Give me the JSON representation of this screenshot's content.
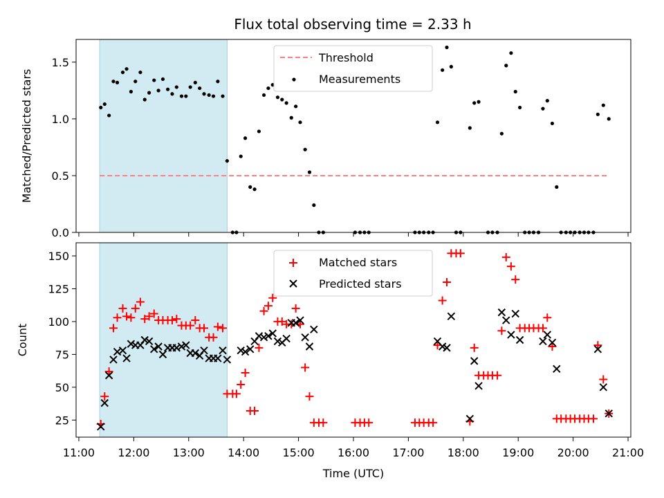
{
  "chart_data": [
    {
      "type": "scatter",
      "title": "Flux total observing time = 2.33 h",
      "ylabel": "Matched/Predicted stars",
      "xlabel": "",
      "ylim": [
        0,
        1.7
      ],
      "xlim": [
        10.95,
        21.05
      ],
      "yticks": [
        0.0,
        0.5,
        1.0,
        1.5
      ],
      "ytick_labels": [
        "0.0",
        "0.5",
        "1.0",
        "1.5"
      ],
      "shaded_span": [
        11.38,
        13.7
      ],
      "colors": {
        "threshold": "#ff7f7f",
        "measurements": "#000000",
        "shade": "#add8e6"
      },
      "legend": {
        "location": "top-center",
        "entries": [
          "Threshold",
          "Measurements"
        ]
      },
      "series": [
        {
          "name": "Threshold",
          "kind": "line",
          "y": 0.5,
          "x_range": [
            11.38,
            20.65
          ]
        },
        {
          "name": "Measurements",
          "kind": "scatter",
          "points": [
            [
              11.4,
              1.1
            ],
            [
              11.47,
              1.13
            ],
            [
              11.55,
              1.03
            ],
            [
              11.63,
              1.33
            ],
            [
              11.7,
              1.32
            ],
            [
              11.8,
              1.41
            ],
            [
              11.87,
              1.44
            ],
            [
              11.95,
              1.24
            ],
            [
              12.03,
              1.33
            ],
            [
              12.12,
              1.41
            ],
            [
              12.2,
              1.17
            ],
            [
              12.28,
              1.23
            ],
            [
              12.37,
              1.34
            ],
            [
              12.45,
              1.25
            ],
            [
              12.53,
              1.35
            ],
            [
              12.62,
              1.26
            ],
            [
              12.7,
              1.22
            ],
            [
              12.78,
              1.28
            ],
            [
              12.87,
              1.2
            ],
            [
              12.95,
              1.2
            ],
            [
              13.03,
              1.28
            ],
            [
              13.12,
              1.32
            ],
            [
              13.2,
              1.27
            ],
            [
              13.28,
              1.22
            ],
            [
              13.37,
              1.21
            ],
            [
              13.45,
              1.2
            ],
            [
              13.53,
              1.33
            ],
            [
              13.62,
              1.2
            ],
            [
              13.7,
              0.63
            ],
            [
              13.8,
              0
            ],
            [
              13.87,
              0
            ],
            [
              13.95,
              0.67
            ],
            [
              14.03,
              0.83
            ],
            [
              14.12,
              0.4
            ],
            [
              14.2,
              0.38
            ],
            [
              14.28,
              0.89
            ],
            [
              14.37,
              1.21
            ],
            [
              14.45,
              1.27
            ],
            [
              14.53,
              1.3
            ],
            [
              14.62,
              1.19
            ],
            [
              14.7,
              1.17
            ],
            [
              14.78,
              1.14
            ],
            [
              14.87,
              1.01
            ],
            [
              14.95,
              1.11
            ],
            [
              15.03,
              0.97
            ],
            [
              15.12,
              0.73
            ],
            [
              15.2,
              0.53
            ],
            [
              15.28,
              0.24
            ],
            [
              15.37,
              0
            ],
            [
              15.45,
              0
            ],
            [
              16.03,
              0
            ],
            [
              16.12,
              0
            ],
            [
              16.2,
              0
            ],
            [
              16.28,
              0
            ],
            [
              17.12,
              0
            ],
            [
              17.2,
              0
            ],
            [
              17.28,
              0
            ],
            [
              17.37,
              0
            ],
            [
              17.45,
              0
            ],
            [
              17.53,
              0.97
            ],
            [
              17.62,
              1.43
            ],
            [
              17.7,
              1.63
            ],
            [
              17.78,
              1.46
            ],
            [
              17.87,
              0
            ],
            [
              17.95,
              0
            ],
            [
              18.12,
              0.92
            ],
            [
              18.2,
              1.14
            ],
            [
              18.28,
              1.15
            ],
            [
              18.45,
              0
            ],
            [
              18.53,
              0
            ],
            [
              18.62,
              0
            ],
            [
              18.7,
              0.87
            ],
            [
              18.78,
              1.47
            ],
            [
              18.87,
              1.58
            ],
            [
              18.95,
              1.24
            ],
            [
              19.03,
              1.1
            ],
            [
              19.12,
              0
            ],
            [
              19.2,
              0
            ],
            [
              19.28,
              0
            ],
            [
              19.37,
              0
            ],
            [
              19.45,
              1.09
            ],
            [
              19.53,
              1.16
            ],
            [
              19.62,
              0.96
            ],
            [
              19.7,
              0.4
            ],
            [
              19.78,
              0
            ],
            [
              19.87,
              0
            ],
            [
              19.95,
              0
            ],
            [
              20.03,
              0
            ],
            [
              20.12,
              0
            ],
            [
              20.2,
              0
            ],
            [
              20.28,
              0
            ],
            [
              20.37,
              0
            ],
            [
              20.45,
              1.04
            ],
            [
              20.55,
              1.12
            ],
            [
              20.65,
              1.0
            ]
          ]
        }
      ]
    },
    {
      "type": "scatter",
      "title": "",
      "ylabel": "Count",
      "xlabel": "Time (UTC)",
      "ylim": [
        12,
        160
      ],
      "xlim": [
        10.95,
        21.05
      ],
      "yticks": [
        25,
        50,
        75,
        100,
        125,
        150
      ],
      "ytick_labels": [
        "25",
        "50",
        "75",
        "100",
        "125",
        "150"
      ],
      "xticks": [
        11,
        12,
        13,
        14,
        15,
        16,
        17,
        18,
        19,
        20,
        21
      ],
      "xtick_labels": [
        "11:00",
        "12:00",
        "13:00",
        "14:00",
        "15:00",
        "16:00",
        "17:00",
        "18:00",
        "19:00",
        "20:00",
        "21:00"
      ],
      "shaded_span": [
        11.38,
        13.7
      ],
      "colors": {
        "matched": "#ff0000",
        "predicted": "#000000",
        "shade": "#add8e6"
      },
      "legend": {
        "location": "top-center",
        "entries": [
          "Matched stars",
          "Predicted stars"
        ]
      },
      "series": [
        {
          "name": "Matched stars",
          "marker": "+",
          "points": [
            [
              11.4,
              22
            ],
            [
              11.47,
              43
            ],
            [
              11.55,
              62
            ],
            [
              11.63,
              95
            ],
            [
              11.7,
              103
            ],
            [
              11.8,
              110
            ],
            [
              11.87,
              104
            ],
            [
              11.95,
              103
            ],
            [
              12.03,
              110
            ],
            [
              12.12,
              115
            ],
            [
              12.2,
              102
            ],
            [
              12.28,
              104
            ],
            [
              12.37,
              106
            ],
            [
              12.45,
              101
            ],
            [
              12.53,
              101
            ],
            [
              12.62,
              101
            ],
            [
              12.7,
              101
            ],
            [
              12.78,
              102
            ],
            [
              12.87,
              97
            ],
            [
              12.95,
              97
            ],
            [
              13.03,
              97
            ],
            [
              13.12,
              101
            ],
            [
              13.2,
              95
            ],
            [
              13.28,
              95
            ],
            [
              13.37,
              88
            ],
            [
              13.45,
              88
            ],
            [
              13.53,
              96
            ],
            [
              13.62,
              95
            ],
            [
              13.7,
              45
            ],
            [
              13.8,
              45
            ],
            [
              13.87,
              45
            ],
            [
              13.95,
              52
            ],
            [
              14.03,
              61
            ],
            [
              14.12,
              32
            ],
            [
              14.2,
              32
            ],
            [
              14.28,
              80
            ],
            [
              14.37,
              108
            ],
            [
              14.45,
              112
            ],
            [
              14.53,
              118
            ],
            [
              14.62,
              100
            ],
            [
              14.7,
              100
            ],
            [
              14.78,
              98
            ],
            [
              14.87,
              98
            ],
            [
              14.95,
              110
            ],
            [
              15.03,
              98
            ],
            [
              15.12,
              65
            ],
            [
              15.2,
              43
            ],
            [
              15.28,
              23
            ],
            [
              15.37,
              23
            ],
            [
              15.45,
              23
            ],
            [
              16.03,
              23
            ],
            [
              16.12,
              23
            ],
            [
              16.2,
              23
            ],
            [
              16.28,
              23
            ],
            [
              17.12,
              23
            ],
            [
              17.2,
              23
            ],
            [
              17.28,
              23
            ],
            [
              17.37,
              23
            ],
            [
              17.45,
              23
            ],
            [
              17.53,
              82
            ],
            [
              17.62,
              116
            ],
            [
              17.7,
              130
            ],
            [
              17.78,
              152
            ],
            [
              17.87,
              152
            ],
            [
              17.95,
              152
            ],
            [
              18.12,
              24
            ],
            [
              18.2,
              80
            ],
            [
              18.28,
              59
            ],
            [
              18.37,
              59
            ],
            [
              18.45,
              59
            ],
            [
              18.53,
              59
            ],
            [
              18.62,
              59
            ],
            [
              18.7,
              93
            ],
            [
              18.78,
              149
            ],
            [
              18.87,
              142
            ],
            [
              18.95,
              132
            ],
            [
              19.03,
              95
            ],
            [
              19.12,
              95
            ],
            [
              19.2,
              95
            ],
            [
              19.28,
              95
            ],
            [
              19.37,
              95
            ],
            [
              19.45,
              95
            ],
            [
              19.53,
              103
            ],
            [
              19.62,
              81
            ],
            [
              19.7,
              26
            ],
            [
              19.78,
              26
            ],
            [
              19.87,
              26
            ],
            [
              19.95,
              26
            ],
            [
              20.03,
              26
            ],
            [
              20.12,
              26
            ],
            [
              20.2,
              26
            ],
            [
              20.28,
              26
            ],
            [
              20.37,
              26
            ],
            [
              20.45,
              82
            ],
            [
              20.55,
              56
            ],
            [
              20.65,
              30
            ]
          ]
        },
        {
          "name": "Predicted stars",
          "marker": "x",
          "points": [
            [
              11.4,
              20
            ],
            [
              11.47,
              38
            ],
            [
              11.55,
              59
            ],
            [
              11.63,
              71
            ],
            [
              11.7,
              77
            ],
            [
              11.8,
              78
            ],
            [
              11.87,
              72
            ],
            [
              11.95,
              83
            ],
            [
              12.03,
              82
            ],
            [
              12.12,
              82
            ],
            [
              12.2,
              86
            ],
            [
              12.28,
              85
            ],
            [
              12.37,
              79
            ],
            [
              12.45,
              81
            ],
            [
              12.53,
              75
            ],
            [
              12.62,
              80
            ],
            [
              12.7,
              80
            ],
            [
              12.78,
              80
            ],
            [
              12.87,
              81
            ],
            [
              12.95,
              82
            ],
            [
              13.03,
              76
            ],
            [
              13.12,
              76
            ],
            [
              13.2,
              74
            ],
            [
              13.28,
              78
            ],
            [
              13.37,
              72
            ],
            [
              13.45,
              72
            ],
            [
              13.53,
              72
            ],
            [
              13.62,
              78
            ],
            [
              13.7,
              71
            ],
            [
              13.95,
              78
            ],
            [
              14.03,
              77
            ],
            [
              14.12,
              79
            ],
            [
              14.2,
              85
            ],
            [
              14.28,
              89
            ],
            [
              14.37,
              88
            ],
            [
              14.45,
              89
            ],
            [
              14.53,
              91
            ],
            [
              14.62,
              85
            ],
            [
              14.7,
              84
            ],
            [
              14.78,
              87
            ],
            [
              14.87,
              99
            ],
            [
              14.95,
              99
            ],
            [
              15.03,
              101
            ],
            [
              15.12,
              88
            ],
            [
              15.2,
              81
            ],
            [
              15.28,
              94
            ],
            [
              17.53,
              85
            ],
            [
              17.62,
              81
            ],
            [
              17.7,
              80
            ],
            [
              17.78,
              104
            ],
            [
              18.12,
              26
            ],
            [
              18.2,
              70
            ],
            [
              18.28,
              51
            ],
            [
              18.7,
              107
            ],
            [
              18.78,
              101
            ],
            [
              18.87,
              90
            ],
            [
              18.95,
              106
            ],
            [
              19.03,
              86
            ],
            [
              19.45,
              85
            ],
            [
              19.53,
              90
            ],
            [
              19.62,
              84
            ],
            [
              19.7,
              64
            ],
            [
              20.45,
              79
            ],
            [
              20.55,
              50
            ],
            [
              20.65,
              30
            ]
          ]
        }
      ]
    }
  ]
}
